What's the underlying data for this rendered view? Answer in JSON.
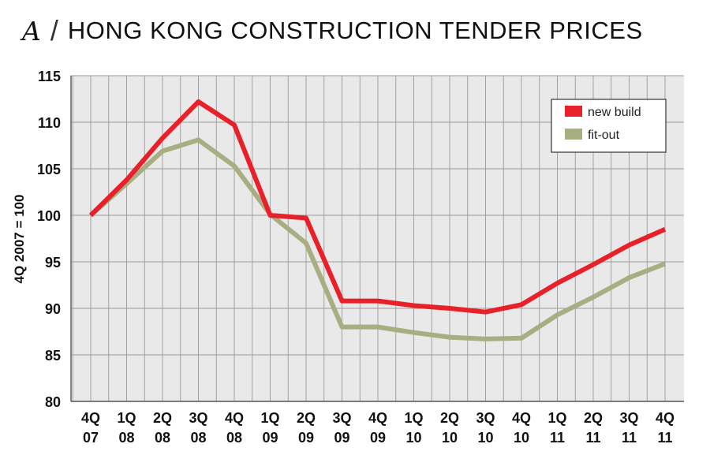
{
  "title": {
    "letter": "A",
    "slash": "/",
    "text": "HONG KONG CONSTRUCTION TENDER PRICES"
  },
  "chart_data": {
    "type": "line",
    "title": "HONG KONG CONSTRUCTION TENDER PRICES",
    "xlabel": "",
    "ylabel": "4Q 2007 = 100",
    "ylim": [
      80,
      115
    ],
    "yticks": [
      80,
      85,
      90,
      95,
      100,
      105,
      110,
      115
    ],
    "grid": true,
    "legend_position": "top-right",
    "categories": [
      [
        "4Q",
        "07"
      ],
      [
        "1Q",
        "08"
      ],
      [
        "2Q",
        "08"
      ],
      [
        "3Q",
        "08"
      ],
      [
        "4Q",
        "08"
      ],
      [
        "1Q",
        "09"
      ],
      [
        "2Q",
        "09"
      ],
      [
        "3Q",
        "09"
      ],
      [
        "4Q",
        "09"
      ],
      [
        "1Q",
        "10"
      ],
      [
        "2Q",
        "10"
      ],
      [
        "3Q",
        "10"
      ],
      [
        "4Q",
        "10"
      ],
      [
        "1Q",
        "11"
      ],
      [
        "2Q",
        "11"
      ],
      [
        "3Q",
        "11"
      ],
      [
        "4Q",
        "11"
      ]
    ],
    "series": [
      {
        "name": "new build",
        "color": "#e8202a",
        "values": [
          100,
          103.8,
          108.3,
          112.2,
          109.7,
          100,
          99.7,
          90.8,
          90.8,
          90.3,
          90,
          89.6,
          90.4,
          92.7,
          94.7,
          96.8,
          98.5
        ]
      },
      {
        "name": "fit-out",
        "color": "#a9ad82",
        "values": [
          100,
          103.4,
          106.9,
          108.1,
          105.3,
          100.1,
          97,
          88,
          88,
          87.4,
          86.9,
          86.7,
          86.8,
          89.3,
          91.2,
          93.3,
          94.8
        ]
      }
    ]
  }
}
